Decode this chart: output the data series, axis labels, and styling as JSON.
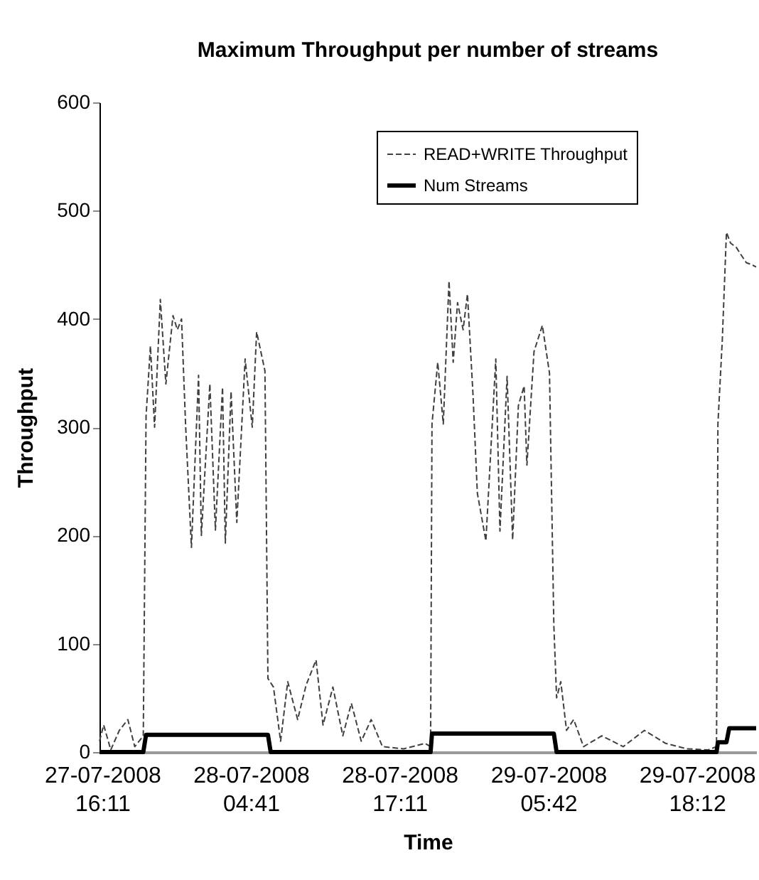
{
  "chart_data": {
    "type": "line",
    "title": "Maximum Throughput per number of streams",
    "xlabel": "Time",
    "ylabel": "Throughput",
    "xlim": [
      "2008-07-27T15:57",
      "2008-07-29T23:11"
    ],
    "ylim": [
      0,
      600
    ],
    "yticks": [
      0,
      100,
      200,
      300,
      400,
      500,
      600
    ],
    "xticks": [
      {
        "value": "2008-07-27T16:11",
        "label": "27-07-2008\n16:11"
      },
      {
        "value": "2008-07-28T04:41",
        "label": "28-07-2008\n04:41"
      },
      {
        "value": "2008-07-28T17:11",
        "label": "28-07-2008\n17:11"
      },
      {
        "value": "2008-07-29T05:42",
        "label": "29-07-2008\n05:42"
      },
      {
        "value": "2008-07-29T18:12",
        "label": "29-07-2008\n18:12"
      }
    ],
    "grid": false,
    "legend": "top right",
    "marker": "none",
    "series": [
      {
        "name": "READ+WRITE Throughput",
        "color": "#404040",
        "line_style": "dashed",
        "x": [
          "2008-07-27T15:57",
          "2008-07-27T16:18",
          "2008-07-27T16:54",
          "2008-07-27T17:37",
          "2008-07-27T18:20",
          "2008-07-27T18:55",
          "2008-07-27T19:38",
          "2008-07-27T19:52",
          "2008-07-27T20:14",
          "2008-07-27T20:35",
          "2008-07-27T21:04",
          "2008-07-27T21:32",
          "2008-07-27T22:08",
          "2008-07-27T22:30",
          "2008-07-27T22:51",
          "2008-07-27T23:12",
          "2008-07-27T23:41",
          "2008-07-28T00:17",
          "2008-07-28T00:31",
          "2008-07-28T01:14",
          "2008-07-28T01:42",
          "2008-07-28T02:18",
          "2008-07-28T02:32",
          "2008-07-28T03:01",
          "2008-07-28T03:30",
          "2008-07-28T04:12",
          "2008-07-28T04:48",
          "2008-07-28T05:10",
          "2008-07-28T05:52",
          "2008-07-28T06:07",
          "2008-07-28T06:35",
          "2008-07-28T07:11",
          "2008-07-28T07:47",
          "2008-07-28T08:37",
          "2008-07-28T09:20",
          "2008-07-28T10:10",
          "2008-07-28T10:45",
          "2008-07-28T11:35",
          "2008-07-28T12:25",
          "2008-07-28T13:08",
          "2008-07-28T13:58",
          "2008-07-28T14:48",
          "2008-07-28T15:45",
          "2008-07-28T17:32",
          "2008-07-28T19:20",
          "2008-07-28T19:48",
          "2008-07-28T19:55",
          "2008-07-28T20:24",
          "2008-07-28T20:52",
          "2008-07-28T21:21",
          "2008-07-28T21:42",
          "2008-07-28T22:04",
          "2008-07-28T22:32",
          "2008-07-28T22:54",
          "2008-07-28T23:22",
          "2008-07-28T23:44",
          "2008-07-29T00:27",
          "2008-07-29T01:17",
          "2008-07-29T01:38",
          "2008-07-29T02:14",
          "2008-07-29T02:42",
          "2008-07-29T03:11",
          "2008-07-29T03:40",
          "2008-07-29T03:54",
          "2008-07-29T04:30",
          "2008-07-29T05:12",
          "2008-07-29T05:48",
          "2008-07-29T06:10",
          "2008-07-29T06:24",
          "2008-07-29T06:45",
          "2008-07-29T07:14",
          "2008-07-29T07:50",
          "2008-07-29T08:40",
          "2008-07-29T10:12",
          "2008-07-29T12:00",
          "2008-07-29T13:47",
          "2008-07-29T15:34",
          "2008-07-29T17:21",
          "2008-07-29T19:08",
          "2008-07-29T19:51",
          "2008-07-29T19:58",
          "2008-07-29T20:20",
          "2008-07-29T20:41",
          "2008-07-29T21:02",
          "2008-07-29T21:31",
          "2008-07-29T21:52",
          "2008-07-29T22:21",
          "2008-07-29T22:50",
          "2008-07-29T23:11"
        ],
        "values": [
          10,
          25,
          2,
          20,
          30,
          5,
          15,
          310,
          375,
          300,
          418,
          340,
          403,
          390,
          400,
          300,
          189,
          348,
          200,
          340,
          205,
          337,
          193,
          333,
          212,
          363,
          300,
          388,
          352,
          68,
          60,
          10,
          65,
          30,
          62,
          85,
          25,
          60,
          15,
          45,
          10,
          30,
          5,
          3,
          8,
          5,
          303,
          360,
          303,
          435,
          360,
          415,
          390,
          423,
          330,
          239,
          195,
          363,
          204,
          347,
          196,
          320,
          338,
          265,
          370,
          394,
          350,
          117,
          50,
          65,
          20,
          30,
          5,
          15,
          5,
          20,
          8,
          3,
          2,
          5,
          303,
          380,
          480,
          470,
          466,
          460,
          452,
          450,
          448
        ]
      },
      {
        "name": "Num Streams",
        "color": "#000000",
        "line_style": "solid",
        "x": [
          "2008-07-27T15:57",
          "2008-07-27T19:38",
          "2008-07-27T19:52",
          "2008-07-28T06:07",
          "2008-07-28T06:21",
          "2008-07-28T19:48",
          "2008-07-28T19:55",
          "2008-07-29T06:10",
          "2008-07-29T06:24",
          "2008-07-29T19:51",
          "2008-07-29T19:58",
          "2008-07-29T20:41",
          "2008-07-29T20:55",
          "2008-07-29T23:11"
        ],
        "values": [
          0,
          0,
          16,
          16,
          0,
          0,
          17,
          17,
          0,
          0,
          9,
          9,
          22,
          22
        ]
      }
    ]
  }
}
